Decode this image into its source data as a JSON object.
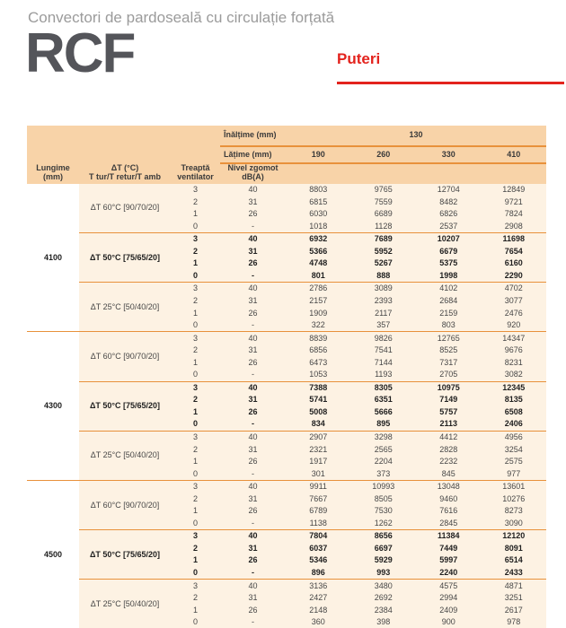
{
  "page": {
    "subtitle": "Convectori de pardoseală cu circulație forțată",
    "product": "RCF",
    "section_title": "Puteri"
  },
  "colors": {
    "accent_red": "#e3231d",
    "header_bg": "#f8d3a8",
    "body_bg": "#fdf2e3",
    "line_orange": "#e8913b"
  },
  "table": {
    "height_label": "Înălțime (mm)",
    "height_value": "130",
    "width_label": "Lățime (mm)",
    "width_values": [
      "190",
      "260",
      "330",
      "410"
    ],
    "col_headers": {
      "lungime_l1": "Lungime",
      "lungime_l2": "(mm)",
      "dt_l1": "ΔT (°C)",
      "dt_l2": "T tur/T retur/T amb",
      "treapta_l1": "Treaptă",
      "treapta_l2": "ventilator",
      "nivel_l1": "Nivel zgomot",
      "nivel_l2": "dB(A)"
    },
    "groups": [
      {
        "length": "4100",
        "dt_blocks": [
          {
            "label": "ΔT 60°C [90/70/20]",
            "bold": false,
            "rows": [
              {
                "step": "3",
                "noise": "40",
                "p": [
                  8803,
                  9765,
                  12704,
                  12849
                ]
              },
              {
                "step": "2",
                "noise": "31",
                "p": [
                  6815,
                  7559,
                  8482,
                  9721
                ]
              },
              {
                "step": "1",
                "noise": "26",
                "p": [
                  6030,
                  6689,
                  6826,
                  7824
                ]
              },
              {
                "step": "0",
                "noise": "-",
                "p": [
                  1018,
                  1128,
                  2537,
                  2908
                ]
              }
            ]
          },
          {
            "label": "ΔT 50°C [75/65/20]",
            "bold": true,
            "rows": [
              {
                "step": "3",
                "noise": "40",
                "p": [
                  6932,
                  7689,
                  10207,
                  11698
                ]
              },
              {
                "step": "2",
                "noise": "31",
                "p": [
                  5366,
                  5952,
                  6679,
                  7654
                ]
              },
              {
                "step": "1",
                "noise": "26",
                "p": [
                  4748,
                  5267,
                  5375,
                  6160
                ]
              },
              {
                "step": "0",
                "noise": "-",
                "p": [
                  801,
                  888,
                  1998,
                  2290
                ]
              }
            ]
          },
          {
            "label": "ΔT 25°C [50/40/20]",
            "bold": false,
            "rows": [
              {
                "step": "3",
                "noise": "40",
                "p": [
                  2786,
                  3089,
                  4102,
                  4702
                ]
              },
              {
                "step": "2",
                "noise": "31",
                "p": [
                  2157,
                  2393,
                  2684,
                  3077
                ]
              },
              {
                "step": "1",
                "noise": "26",
                "p": [
                  1909,
                  2117,
                  2159,
                  2476
                ]
              },
              {
                "step": "0",
                "noise": "-",
                "p": [
                  322,
                  357,
                  803,
                  920
                ]
              }
            ]
          }
        ]
      },
      {
        "length": "4300",
        "dt_blocks": [
          {
            "label": "ΔT 60°C [90/70/20]",
            "bold": false,
            "rows": [
              {
                "step": "3",
                "noise": "40",
                "p": [
                  8839,
                  9826,
                  12765,
                  14347
                ]
              },
              {
                "step": "2",
                "noise": "31",
                "p": [
                  6856,
                  7541,
                  8525,
                  9676
                ]
              },
              {
                "step": "1",
                "noise": "26",
                "p": [
                  6473,
                  7144,
                  7317,
                  8231
                ]
              },
              {
                "step": "0",
                "noise": "-",
                "p": [
                  1053,
                  1193,
                  2705,
                  3082
                ]
              }
            ]
          },
          {
            "label": "ΔT 50°C [75/65/20]",
            "bold": true,
            "rows": [
              {
                "step": "3",
                "noise": "40",
                "p": [
                  7388,
                  8305,
                  10975,
                  12345
                ]
              },
              {
                "step": "2",
                "noise": "31",
                "p": [
                  5741,
                  6351,
                  7149,
                  8135
                ]
              },
              {
                "step": "1",
                "noise": "26",
                "p": [
                  5008,
                  5666,
                  5757,
                  6508
                ]
              },
              {
                "step": "0",
                "noise": "-",
                "p": [
                  834,
                  895,
                  2113,
                  2406
                ]
              }
            ]
          },
          {
            "label": "ΔT 25°C [50/40/20]",
            "bold": false,
            "rows": [
              {
                "step": "3",
                "noise": "40",
                "p": [
                  2907,
                  3298,
                  4412,
                  4956
                ]
              },
              {
                "step": "2",
                "noise": "31",
                "p": [
                  2321,
                  2565,
                  2828,
                  3254
                ]
              },
              {
                "step": "1",
                "noise": "26",
                "p": [
                  1917,
                  2204,
                  2232,
                  2575
                ]
              },
              {
                "step": "0",
                "noise": "-",
                "p": [
                  301,
                  373,
                  845,
                  977
                ]
              }
            ]
          }
        ]
      },
      {
        "length": "4500",
        "dt_blocks": [
          {
            "label": "ΔT 60°C [90/70/20]",
            "bold": false,
            "rows": [
              {
                "step": "3",
                "noise": "40",
                "p": [
                  9911,
                  10993,
                  13048,
                  13601
                ]
              },
              {
                "step": "2",
                "noise": "31",
                "p": [
                  7667,
                  8505,
                  9460,
                  10276
                ]
              },
              {
                "step": "1",
                "noise": "26",
                "p": [
                  6789,
                  7530,
                  7616,
                  8273
                ]
              },
              {
                "step": "0",
                "noise": "-",
                "p": [
                  1138,
                  1262,
                  2845,
                  3090
                ]
              }
            ]
          },
          {
            "label": "ΔT 50°C [75/65/20]",
            "bold": true,
            "rows": [
              {
                "step": "3",
                "noise": "40",
                "p": [
                  7804,
                  8656,
                  11384,
                  12120
                ]
              },
              {
                "step": "2",
                "noise": "31",
                "p": [
                  6037,
                  6697,
                  7449,
                  8091
                ]
              },
              {
                "step": "1",
                "noise": "26",
                "p": [
                  5346,
                  5929,
                  5997,
                  6514
                ]
              },
              {
                "step": "0",
                "noise": "-",
                "p": [
                  896,
                  993,
                  2240,
                  2433
                ]
              }
            ]
          },
          {
            "label": "ΔT 25°C [50/40/20]",
            "bold": false,
            "rows": [
              {
                "step": "3",
                "noise": "40",
                "p": [
                  3136,
                  3480,
                  4575,
                  4871
                ]
              },
              {
                "step": "2",
                "noise": "31",
                "p": [
                  2427,
                  2692,
                  2994,
                  3251
                ]
              },
              {
                "step": "1",
                "noise": "26",
                "p": [
                  2148,
                  2384,
                  2409,
                  2617
                ]
              },
              {
                "step": "0",
                "noise": "-",
                "p": [
                  360,
                  398,
                  900,
                  978
                ]
              }
            ]
          }
        ]
      }
    ]
  }
}
